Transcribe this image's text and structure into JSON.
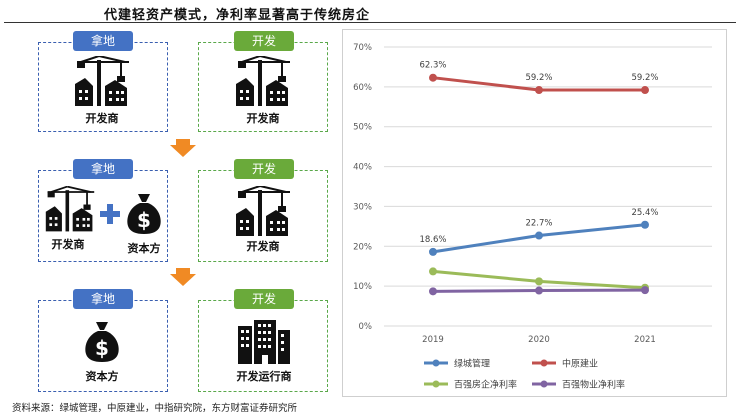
{
  "header": {
    "title": "代建轻资产模式，净利率显著高于传统房企"
  },
  "source": "资料来源：绿城管理，中原建业，中指研究院，东方财富证券研究所",
  "colors": {
    "blue_tag": "#4472c4",
    "green_tag": "#6aaa3a",
    "arrow": "#f08a24"
  },
  "diagram": {
    "rows": [
      {
        "left_tag": "拿地",
        "left_labels": [
          "开发商"
        ],
        "right_tag": "开发",
        "right_label": "开发商"
      },
      {
        "left_tag": "拿地",
        "left_labels": [
          "开发商",
          "资本方"
        ],
        "right_tag": "开发",
        "right_label": "开发商"
      },
      {
        "left_tag": "拿地",
        "left_labels": [
          "资本方"
        ],
        "right_tag": "开发",
        "right_label": "开发运行商"
      }
    ]
  },
  "chart_data": {
    "type": "line",
    "x": [
      "2019",
      "2020",
      "2021"
    ],
    "ylim": [
      0,
      70
    ],
    "yticks": [
      "0%",
      "10%",
      "20%",
      "30%",
      "40%",
      "50%",
      "60%",
      "70%"
    ],
    "series": [
      {
        "name": "绿城管理",
        "color": "#4f81bd",
        "values": [
          18.6,
          22.7,
          25.4
        ],
        "labels": [
          "18.6%",
          "22.7%",
          "25.4%"
        ]
      },
      {
        "name": "中原建业",
        "color": "#c0504d",
        "values": [
          62.3,
          59.2,
          59.2
        ],
        "labels": [
          "62.3%",
          "59.2%",
          "59.2%"
        ]
      },
      {
        "name": "百强房企净利率",
        "color": "#9bbb59",
        "values": [
          13.7,
          11.2,
          9.6
        ],
        "labels": []
      },
      {
        "name": "百强物业净利率",
        "color": "#8064a2",
        "values": [
          8.7,
          8.9,
          9.0
        ],
        "labels": []
      }
    ],
    "grid": true,
    "legend": "bottom"
  }
}
